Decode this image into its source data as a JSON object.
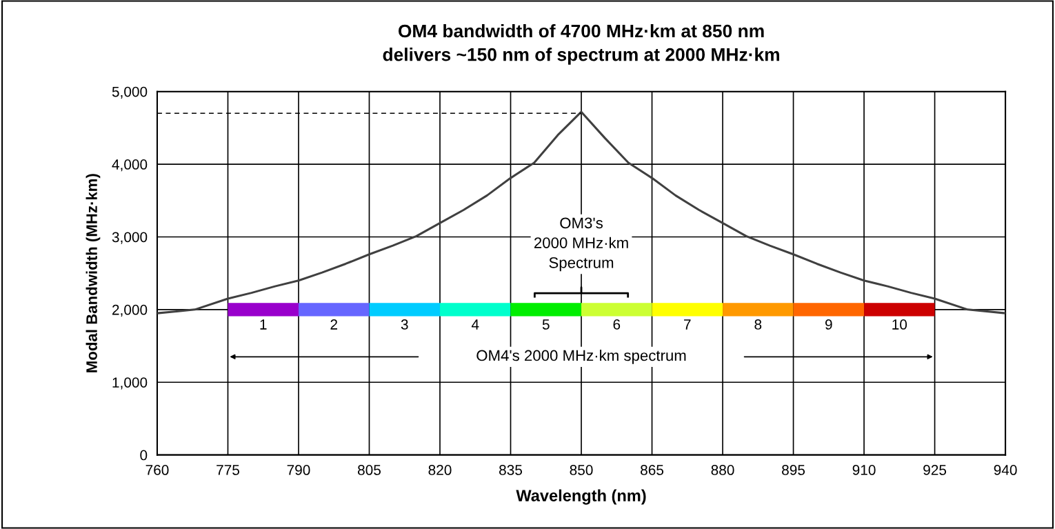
{
  "chart_data": {
    "type": "line",
    "title": "OM4 bandwidth of 4700 MHz·km at 850 nm\ndelivers ~150 nm of spectrum at 2000 MHz·km",
    "xlabel": "Wavelength (nm)",
    "ylabel": "Modal Bandwidth (MHz·km)",
    "xlim": [
      760,
      940
    ],
    "xticks": [
      760,
      775,
      790,
      805,
      820,
      835,
      850,
      865,
      880,
      895,
      910,
      925,
      940
    ],
    "ylim": [
      0,
      5000
    ],
    "yticks": [
      0,
      {
        "value": 1000,
        "label": "1,000"
      },
      {
        "value": 2000,
        "label": "2,000"
      },
      {
        "value": 3000,
        "label": "3,000"
      },
      {
        "value": 4000,
        "label": "4,000"
      },
      {
        "value": 5000,
        "label": "5,000"
      }
    ],
    "grid": true,
    "marker": "none",
    "series": [
      {
        "color": "#404040",
        "x": [
          760,
          768,
          775,
          780,
          785,
          790,
          795,
          800,
          805,
          810,
          815,
          820,
          825,
          830,
          835,
          840,
          845,
          850,
          855,
          860,
          865,
          870,
          875,
          880,
          885,
          890,
          895,
          900,
          905,
          910,
          915,
          920,
          925,
          932,
          940
        ],
        "values": [
          1950,
          2000,
          2150,
          2230,
          2320,
          2400,
          2510,
          2630,
          2760,
          2880,
          3010,
          3190,
          3370,
          3570,
          3810,
          4020,
          4400,
          4720,
          4360,
          4020,
          3810,
          3570,
          3370,
          3190,
          3010,
          2880,
          2760,
          2630,
          2510,
          2400,
          2320,
          2230,
          2150,
          2000,
          1950
        ]
      },
      {
        "color": "#000000",
        "line_style": "dashed",
        "x": [
          760,
          850
        ],
        "values": [
          4700,
          4700
        ]
      },
      {
        "name": "1",
        "color": "#9900cc",
        "x": [
          775,
          790
        ],
        "values": [
          2000,
          2000
        ]
      },
      {
        "name": "2",
        "color": "#6666ff",
        "x": [
          790,
          805
        ],
        "values": [
          2000,
          2000
        ]
      },
      {
        "name": "3",
        "color": "#00ccff",
        "x": [
          805,
          820
        ],
        "values": [
          2000,
          2000
        ]
      },
      {
        "name": "4",
        "color": "#00ffcc",
        "x": [
          820,
          835
        ],
        "values": [
          2000,
          2000
        ]
      },
      {
        "name": "5",
        "color": "#00ee00",
        "x": [
          835,
          850
        ],
        "values": [
          2000,
          2000
        ]
      },
      {
        "name": "6",
        "color": "#ccff33",
        "x": [
          850,
          865
        ],
        "values": [
          2000,
          2000
        ]
      },
      {
        "name": "7",
        "color": "#ffff00",
        "x": [
          865,
          880
        ],
        "values": [
          2000,
          2000
        ]
      },
      {
        "name": "8",
        "color": "#ff9900",
        "x": [
          880,
          895
        ],
        "values": [
          2000,
          2000
        ]
      },
      {
        "name": "9",
        "color": "#ff6600",
        "x": [
          895,
          910
        ],
        "values": [
          2000,
          2000
        ]
      },
      {
        "name": "10",
        "color": "#cc0000",
        "x": [
          910,
          925
        ],
        "values": [
          2000,
          2000
        ]
      }
    ],
    "annotations": [
      "OM3's\n2000 MHz·km\nSpectrum",
      "OM4's 2000 MHz·km spectrum"
    ]
  }
}
